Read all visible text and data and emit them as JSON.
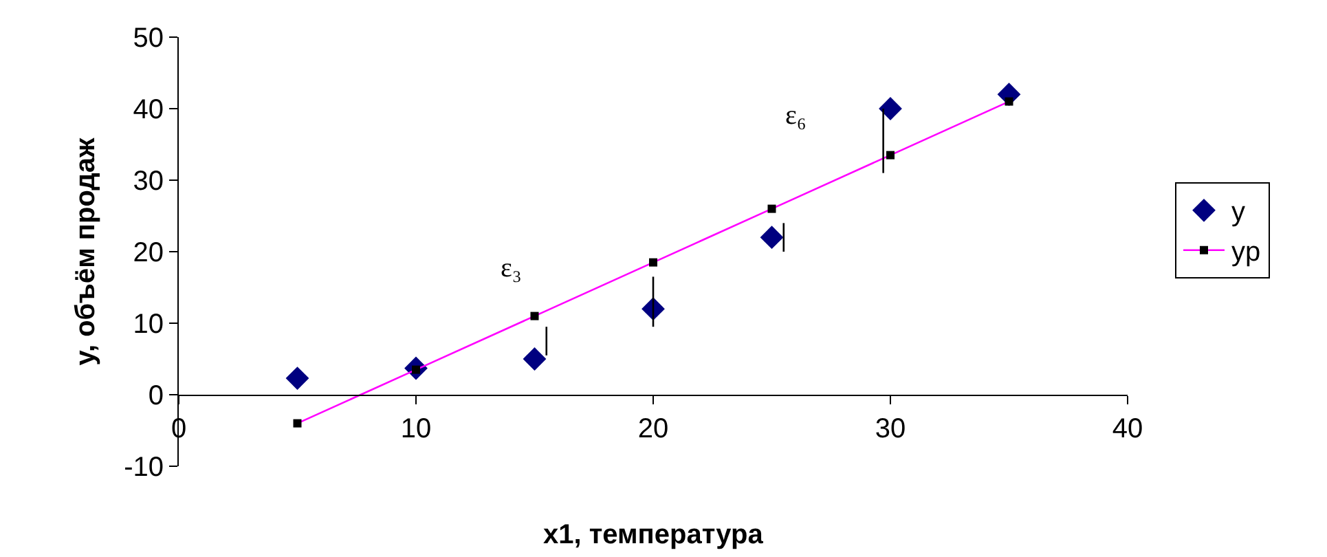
{
  "chart_data": {
    "type": "scatter",
    "xlabel": "x1, температура",
    "ylabel": "y, объём продаж",
    "x": [
      5,
      10,
      15,
      20,
      25,
      30,
      35
    ],
    "series": [
      {
        "name": "y",
        "marker": "diamond",
        "color": "#000080",
        "values": [
          2.3,
          3.7,
          5,
          12,
          22,
          40,
          42
        ]
      },
      {
        "name": "yp",
        "type": "line",
        "marker": "square",
        "color": "#ff00ff",
        "values": [
          -4,
          3.5,
          11,
          18.5,
          26,
          33.5,
          41
        ]
      },
      {
        "type": "line",
        "marker": "none",
        "color": "#000000",
        "x": [
          15.5,
          15.5,
          null,
          20,
          20,
          null,
          25.5,
          25.5,
          null,
          29.7,
          29.7
        ],
        "values": [
          5.5,
          9.5,
          null,
          9.5,
          16.5,
          null,
          20,
          24,
          null,
          31,
          40
        ]
      }
    ],
    "annotations": [
      "ε₃",
      "ε₆"
    ],
    "xlim": [
      0,
      40
    ],
    "xticks": [
      0,
      10,
      20,
      30,
      40
    ],
    "ylim": [
      -10,
      50
    ],
    "yticks": [
      -10,
      0,
      10,
      20,
      30,
      40,
      50
    ],
    "legend": "right"
  }
}
